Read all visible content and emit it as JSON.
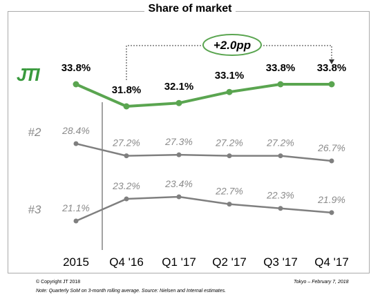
{
  "chart_data": {
    "type": "line",
    "title": "Share of market",
    "categories": [
      "2015",
      "Q4 '16",
      "Q1 '17",
      "Q2 '17",
      "Q3 '17",
      "Q4 '17"
    ],
    "series": [
      {
        "name": "JTI",
        "color": "#5aa550",
        "label_color": "#000000",
        "bold": true,
        "values": [
          33.8,
          31.8,
          32.1,
          33.1,
          33.8,
          33.8
        ],
        "labels": [
          "33.8%",
          "31.8%",
          "32.1%",
          "33.1%",
          "33.8%",
          "33.8%"
        ]
      },
      {
        "name": "#2",
        "color": "#7f7f7f",
        "label_color": "#8a8a8a",
        "bold": false,
        "values": [
          28.4,
          27.2,
          27.3,
          27.2,
          27.2,
          26.7
        ],
        "labels": [
          "28.4%",
          "27.2%",
          "27.3%",
          "27.2%",
          "27.2%",
          "26.7%"
        ]
      },
      {
        "name": "#3",
        "color": "#7f7f7f",
        "label_color": "#8a8a8a",
        "bold": false,
        "values": [
          21.1,
          23.2,
          23.4,
          22.7,
          22.3,
          21.9
        ],
        "labels": [
          "21.1%",
          "23.2%",
          "23.4%",
          "22.7%",
          "22.3%",
          "21.9%"
        ]
      }
    ],
    "annotation": {
      "text": "+2.0pp",
      "from": "Q4 '16",
      "to": "Q4 '17",
      "color": "#5aa550"
    },
    "grid": false
  },
  "logo": {
    "text": "JTI",
    "color": "#3a9a3e"
  },
  "footer": {
    "copyright": "© Copyright JT 2018",
    "location_date": "Tokyo – February 7, 2018",
    "note": "Note: Quarterly SoM on 3-month rolling average. Source: Nielsen and Internal estimates."
  }
}
